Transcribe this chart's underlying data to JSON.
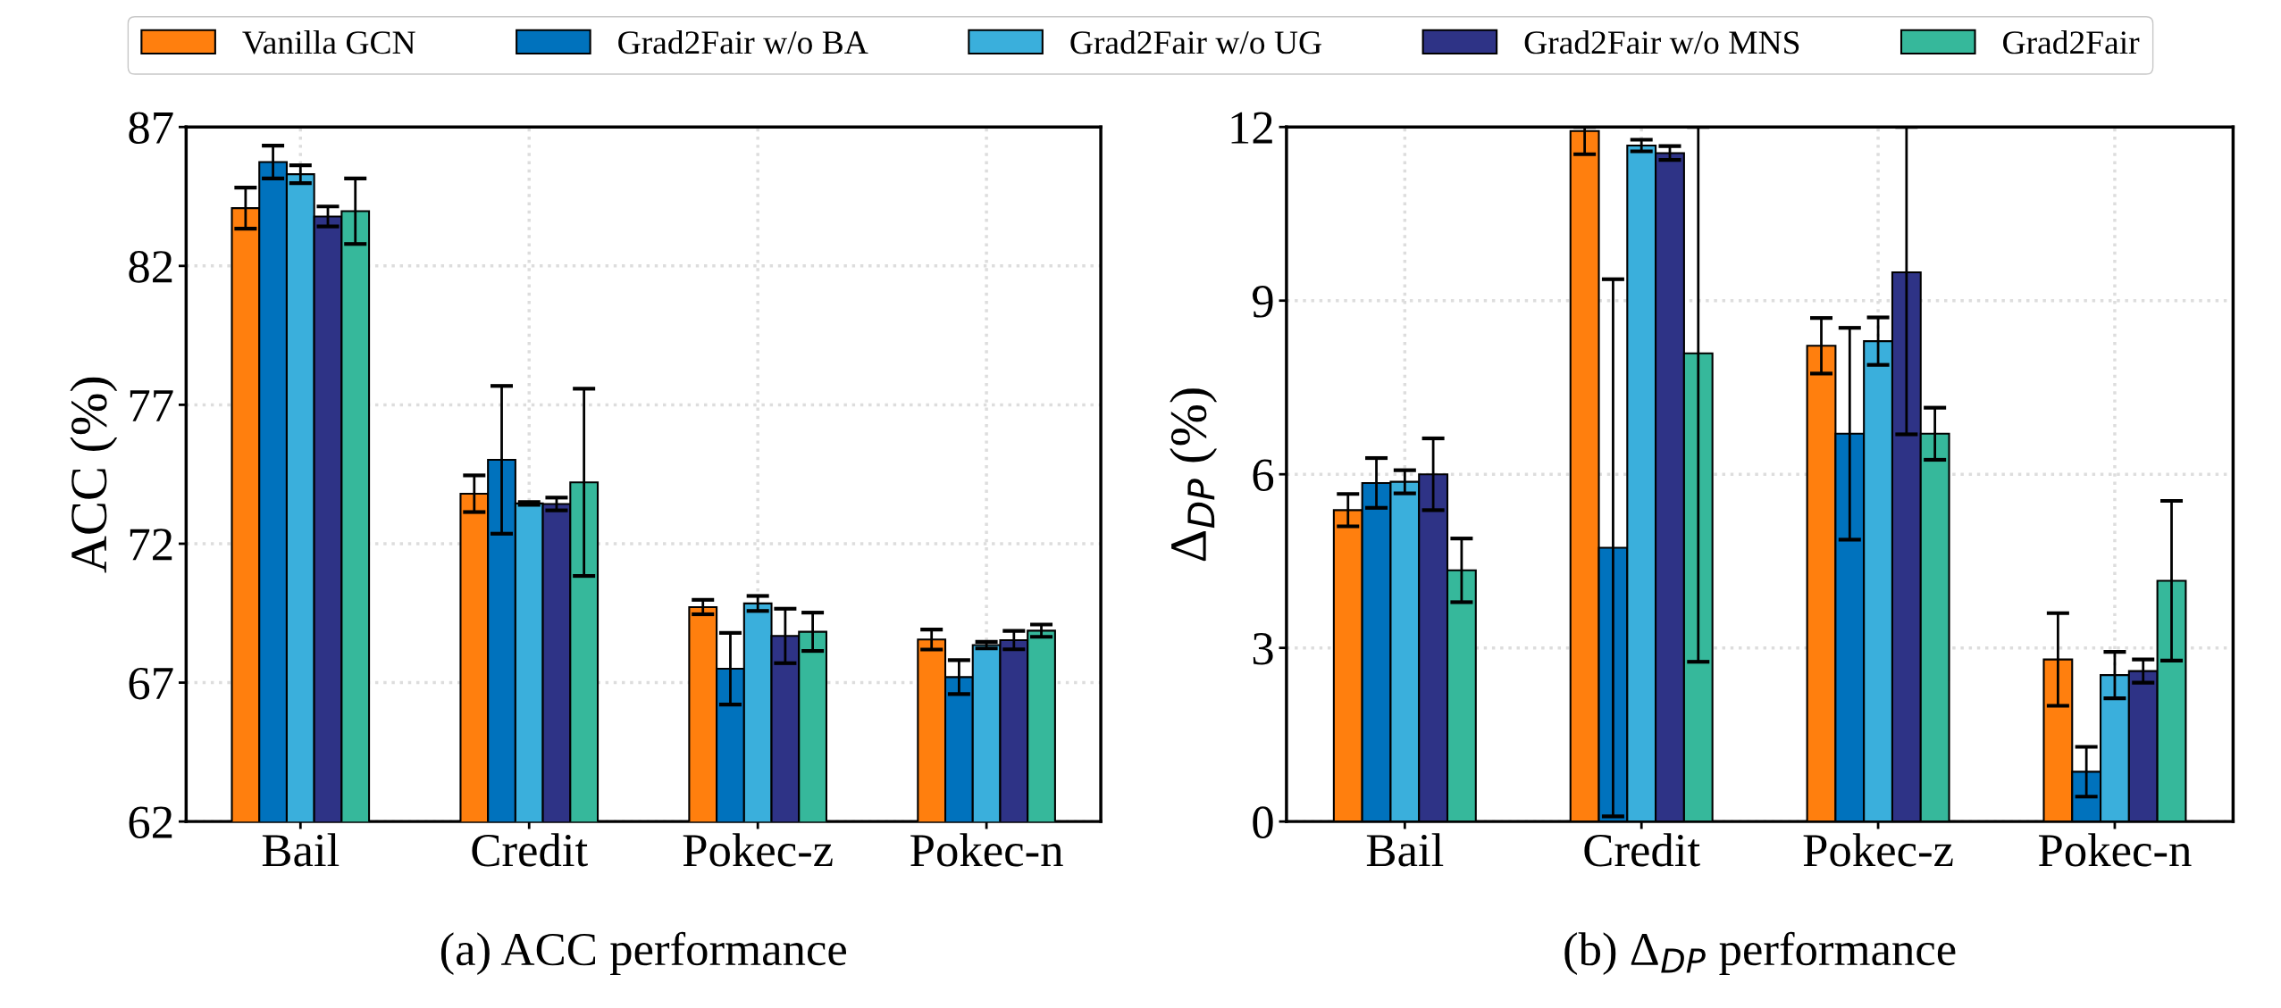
{
  "chart_data": [
    {
      "type": "bar",
      "xlabel": "(a) ACC performance",
      "ylabel": "ACC (%)",
      "categories": [
        "Bail",
        "Credit",
        "Pokec-z",
        "Pokec-n"
      ],
      "ylim": [
        62,
        87
      ],
      "yticks": [
        62,
        67,
        72,
        77,
        82,
        87
      ],
      "grid": true,
      "legend": "top",
      "series": [
        {
          "name": "Vanilla GCN",
          "color": "#ff7f0e",
          "values": [
            84.08,
            73.8,
            69.72,
            68.55
          ],
          "errors": [
            0.74,
            0.66,
            0.26,
            0.36
          ]
        },
        {
          "name": "Grad2Fair w/o BA",
          "color": "#0072bd",
          "values": [
            85.74,
            75.02,
            67.5,
            67.2
          ],
          "errors": [
            0.59,
            2.66,
            1.29,
            0.61
          ]
        },
        {
          "name": "Grad2Fair w/o UG",
          "color": "#3aafdc",
          "values": [
            85.3,
            73.45,
            69.85,
            68.35
          ],
          "errors": [
            0.32,
            0.05,
            0.27,
            0.12
          ]
        },
        {
          "name": "Grad2Fair w/o MNS",
          "color": "#2e3386",
          "values": [
            83.78,
            73.43,
            68.68,
            68.53
          ],
          "errors": [
            0.36,
            0.23,
            0.98,
            0.33
          ]
        },
        {
          "name": "Grad2Fair",
          "color": "#36b89b",
          "values": [
            83.97,
            74.21,
            68.83,
            68.87
          ],
          "errors": [
            1.18,
            3.37,
            0.69,
            0.22
          ]
        }
      ]
    },
    {
      "type": "bar",
      "xlabel": "(b) Δ$_{DP}$ performance",
      "ylabel": "Δ$_{DP}$ (%)",
      "categories": [
        "Bail",
        "Credit",
        "Pokec-z",
        "Pokec-n"
      ],
      "ylim": [
        0,
        12
      ],
      "yticks": [
        0,
        3,
        6,
        9,
        12
      ],
      "grid": true,
      "legend": "top",
      "series": [
        {
          "name": "Vanilla GCN",
          "color": "#ff7f0e",
          "values": [
            5.38,
            11.93,
            8.22,
            2.8
          ],
          "errors": [
            0.28,
            [
              11.53,
              12
            ],
            0.48,
            0.8
          ]
        },
        {
          "name": "Grad2Fair w/o BA",
          "color": "#0072bd",
          "values": [
            5.85,
            4.73,
            6.7,
            0.86
          ],
          "errors": [
            0.43,
            4.64,
            1.83,
            0.43
          ]
        },
        {
          "name": "Grad2Fair w/o UG",
          "color": "#3aafdc",
          "values": [
            5.87,
            11.68,
            8.3,
            2.53
          ],
          "errors": [
            0.2,
            0.1,
            0.41,
            0.4
          ]
        },
        {
          "name": "Grad2Fair w/o MNS",
          "color": "#2e3386",
          "values": [
            6.0,
            11.55,
            9.49,
            2.6
          ],
          "errors": [
            0.62,
            0.12,
            [
              6.69,
              12
            ],
            0.2
          ]
        },
        {
          "name": "Grad2Fair",
          "color": "#36b89b",
          "values": [
            4.34,
            8.09,
            6.7,
            4.16
          ],
          "errors": [
            0.55,
            [
              2.76,
              12
            ],
            0.45,
            1.38
          ]
        }
      ]
    }
  ]
}
